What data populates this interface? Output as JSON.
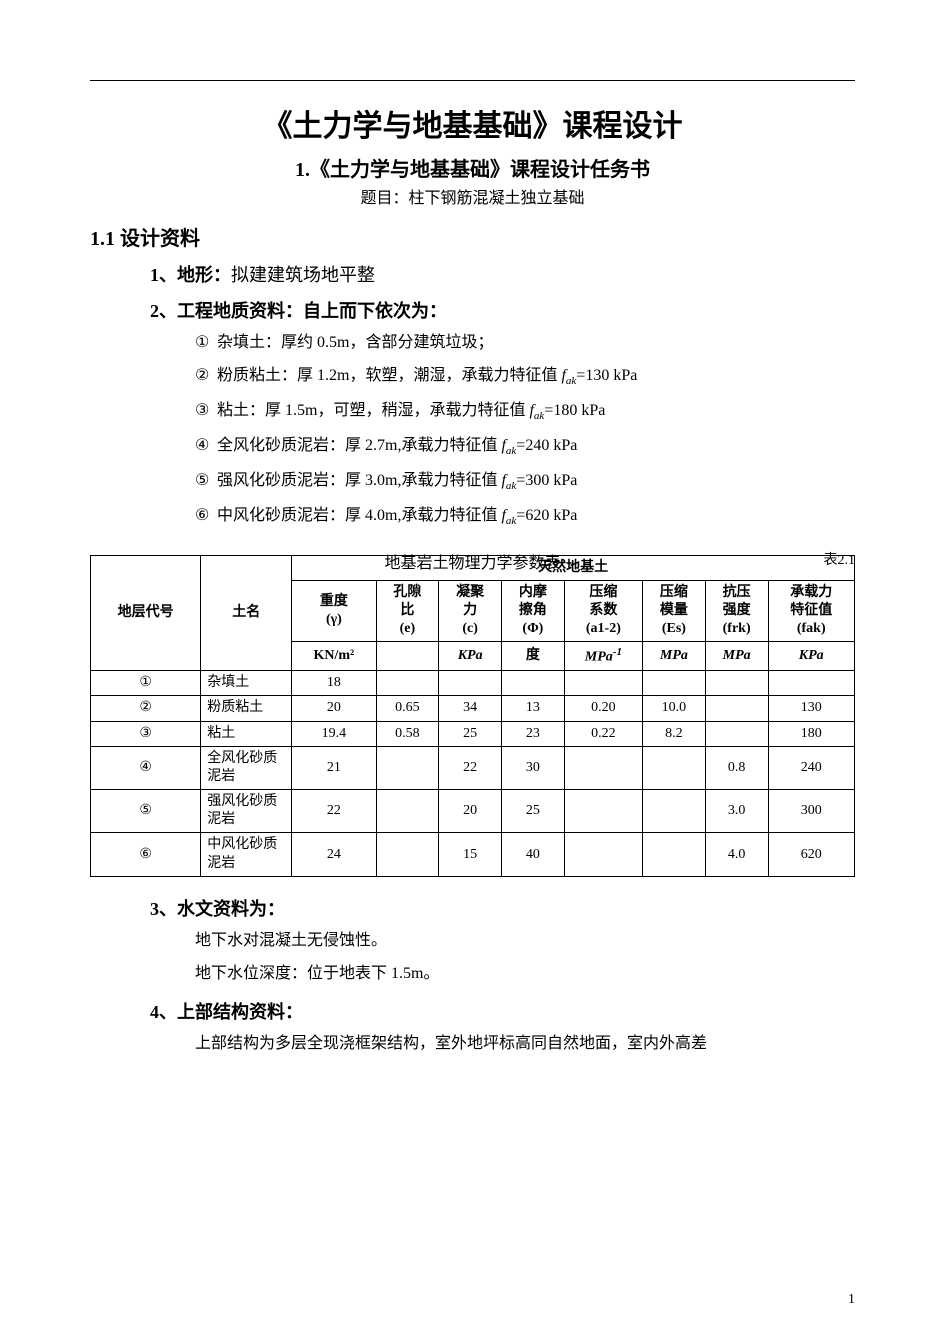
{
  "title": "《土力学与地基基础》课程设计",
  "subtitle": "1.《土力学与地基基础》课程设计任务书",
  "topic": "题目：柱下钢筋混凝土独立基础",
  "sections": {
    "s1": "1.1 设计资料",
    "p1_num": "1、地形：",
    "p1_text": "拟建建筑场地平整",
    "p2_num": "2、工程地质资料：",
    "p2_text": "自上而下依次为：",
    "items": {
      "i1": "杂填土：厚约 0.5m，含部分建筑垃圾；",
      "i2a": "粉质粘土：厚 1.2m，软塑，潮湿，承载力特征值 ",
      "i2b": "=130 kPa",
      "i3a": "粘土：厚 1.5m，可塑，稍湿，承载力特征值 ",
      "i3b": "=180 kPa",
      "i4a": "全风化砂质泥岩：厚 2.7m,承载力特征值 ",
      "i4b": "=240 kPa",
      "i5a": "强风化砂质泥岩：厚 3.0m,承载力特征值 ",
      "i5b": "=300 kPa",
      "i6a": "中风化砂质泥岩：厚 4.0m,承载力特征值 ",
      "i6b": "=620 kPa"
    },
    "circles": [
      "①",
      "②",
      "③",
      "④",
      "⑤",
      "⑥"
    ],
    "fak": "f",
    "fak_sub": "ak"
  },
  "table": {
    "caption": "地基岩土物理力学参数表",
    "tabno": "表2.1",
    "header_top": "天然地基土",
    "header_col0": "地层代号",
    "header_col1": "土名",
    "cols": [
      {
        "l1": "重度",
        "l2": "(γ)",
        "u": "KN/m²"
      },
      {
        "l1": "孔隙",
        "l2": "比",
        "l3": "(e)",
        "u": ""
      },
      {
        "l1": "凝聚",
        "l2": "力",
        "l3": "(c)",
        "u": "KPa"
      },
      {
        "l1": "内摩",
        "l2": "擦角",
        "l3": "(Φ)",
        "u": "度"
      },
      {
        "l1": "压缩",
        "l2": "系数",
        "l3": "(a1-2)",
        "u": "MPa"
      },
      {
        "l1": "压缩",
        "l2": "模量",
        "l3": "(Es)",
        "u": "MPa"
      },
      {
        "l1": "抗压",
        "l2": "强度",
        "l3": "(frk)",
        "u": "MPa"
      },
      {
        "l1": "承载力",
        "l2": "特征值",
        "l3": "(fak)",
        "u": "KPa"
      }
    ],
    "unit_sup": "-1",
    "rows": [
      {
        "id": "①",
        "name": "杂填土",
        "c": [
          "18",
          "",
          "",
          "",
          "",
          "",
          "",
          ""
        ]
      },
      {
        "id": "②",
        "name": "粉质粘土",
        "c": [
          "20",
          "0.65",
          "34",
          "13",
          "0.20",
          "10.0",
          "",
          "130"
        ]
      },
      {
        "id": "③",
        "name": "粘土",
        "c": [
          "19.4",
          "0.58",
          "25",
          "23",
          "0.22",
          "8.2",
          "",
          "180"
        ]
      },
      {
        "id": "④",
        "name": "全风化砂质泥岩",
        "c": [
          "21",
          "",
          "22",
          "30",
          "",
          "",
          "0.8",
          "240"
        ]
      },
      {
        "id": "⑤",
        "name": "强风化砂质泥岩",
        "c": [
          "22",
          "",
          "20",
          "25",
          "",
          "",
          "3.0",
          "300"
        ]
      },
      {
        "id": "⑥",
        "name": "中风化砂质泥岩",
        "c": [
          "24",
          "",
          "15",
          "40",
          "",
          "",
          "4.0",
          "620"
        ]
      }
    ]
  },
  "after": {
    "p3_num": "3、水文资料为：",
    "p3_l1": "地下水对混凝土无侵蚀性。",
    "p3_l2": "地下水位深度：位于地表下 1.5m。",
    "p4_num": "4、上部结构资料：",
    "p4_l1": "上部结构为多层全现浇框架结构，室外地坪标高同自然地面，室内外高差"
  },
  "page_number": "1"
}
